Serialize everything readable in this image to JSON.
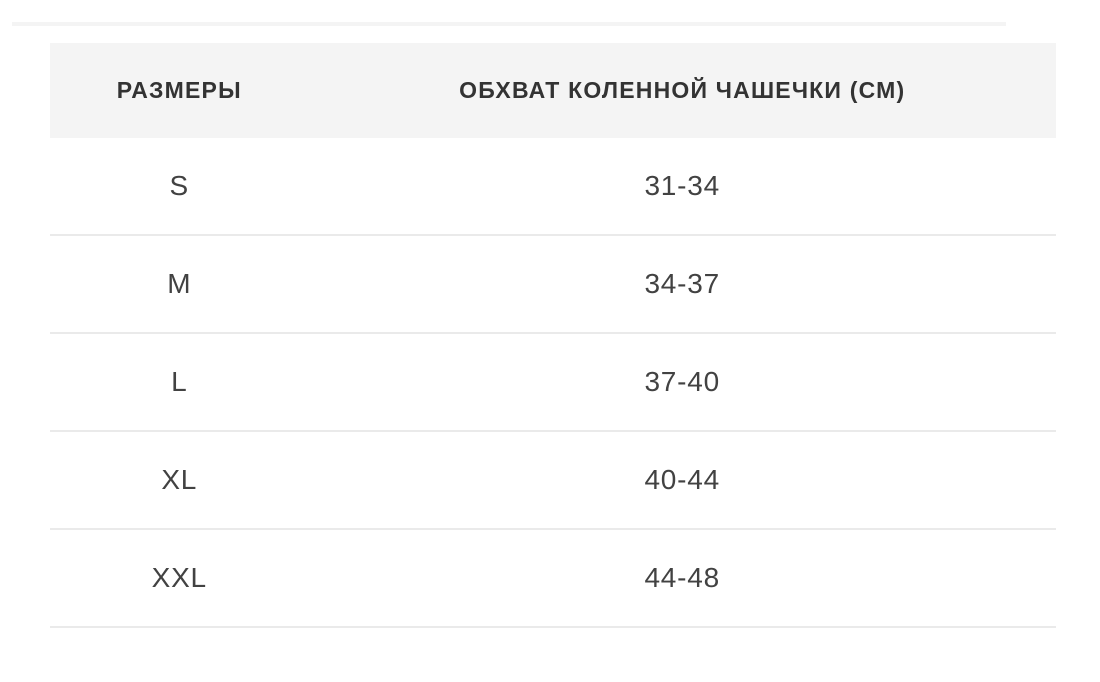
{
  "page": {
    "background": "#ffffff",
    "top_line_color": "#f4f4f4"
  },
  "table": {
    "columns": [
      {
        "key": "size",
        "label": "РАЗМЕРЫ"
      },
      {
        "key": "girth",
        "label": "ОБХВАТ КОЛЕННОЙ ЧАШЕЧКИ (СМ)"
      }
    ],
    "rows": [
      {
        "size": "S",
        "girth": "31-34"
      },
      {
        "size": "M",
        "girth": "34-37"
      },
      {
        "size": "L",
        "girth": "37-40"
      },
      {
        "size": "XL",
        "girth": "40-44"
      },
      {
        "size": "XXL",
        "girth": "44-48"
      }
    ],
    "colors": {
      "header_bg": "#f4f4f4",
      "header_text": "#333333",
      "cell_text": "#424242",
      "divider": "#eaeaea"
    }
  }
}
